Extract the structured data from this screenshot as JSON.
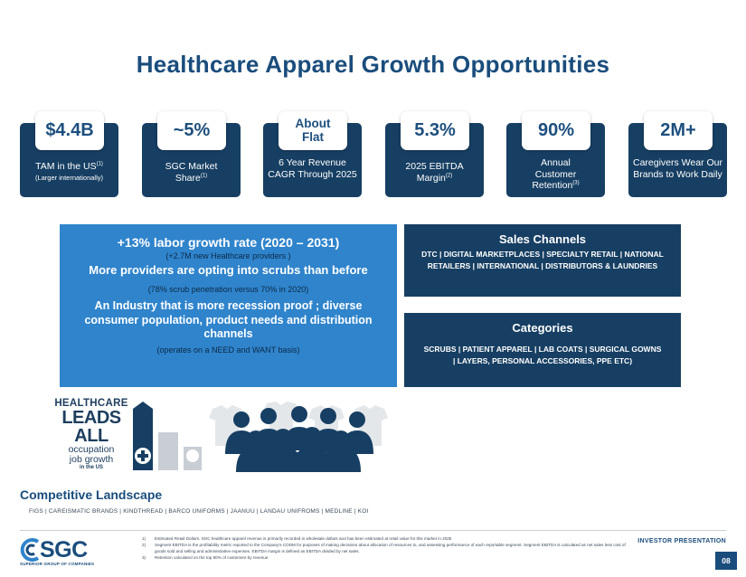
{
  "title": "Healthcare Apparel Growth Opportunities",
  "stats": [
    {
      "value": "$4.4B",
      "label": "TAM in the US",
      "sup": "(1)",
      "note": "(Larger internationally)"
    },
    {
      "value": "~5%",
      "label": "SGC Market Share",
      "sup": "(1)"
    },
    {
      "value": "About Flat",
      "label": "6 Year Revenue CAGR Through 2025"
    },
    {
      "value": "5.3%",
      "label": "2025 EBITDA Margin",
      "sup": "(2)"
    },
    {
      "value": "90%",
      "label": "Annual Customer Retention",
      "sup": "(3)"
    },
    {
      "value": "2M+",
      "label": "Caregivers Wear Our Brands to Work Daily"
    }
  ],
  "growth": {
    "headline": "+13% labor growth rate (2020 – 2031)",
    "headline_sub": "(+2.7M new Healthcare providers )",
    "scrubs": "More providers are opting into scrubs than before",
    "scrubs_sub": "(78% scrub penetration versus 70% in 2020)",
    "industry": "An Industry that is more recession proof ; diverse consumer population, product needs and distribution channels",
    "industry_sub": "(operates on a NEED and WANT basis)"
  },
  "sales_channels": {
    "title": "Sales Channels",
    "body": "DTC | DIGITAL MARKETPLACES | SPECIALTY RETAIL | NATIONAL RETAILERS | INTERNATIONAL | DISTRIBUTORS & LAUNDRIES"
  },
  "categories": {
    "title": "Categories",
    "body": "SCRUBS | PATIENT APPAREL | LAB COATS | SURGICAL GOWNS | LAYERS, PERSONAL ACCESSORIES, PPE ETC)"
  },
  "infographic": {
    "line1": "HEALTHCARE",
    "line2": "LEADS ALL",
    "line3": "occupation",
    "line4": "job growth",
    "line5": "in the US"
  },
  "competitive": {
    "title": "Competitive Landscape",
    "list": "FIGS | CAREISMATIC BRANDS | KINDTHREAD | BARCO UNIFORMS | JAANUU | LANDAU UNIFROMS | MEDLINE | KOI"
  },
  "footnotes": [
    {
      "num": "1)",
      "text": "Estimated Retail Dollars. SGC healthcare apparel revenue is primarily recorded in wholesale dollars and has been estimated at retail value for this market in 2025"
    },
    {
      "num": "2)",
      "text": "Segment EBITDA is the profitability metric reported to the Company's CODM for purposes of making decisions about allocation of resources to, and assessing performance of each reportable segment. Segment EBITDA is calculated as net sales less cost of goods sold and selling and administrative expenses. EBITDA margin is defined as EBITDA divided by net sales."
    },
    {
      "num": "3)",
      "text": "Retention calculated on the top 80% of customers by revenue"
    }
  ],
  "logo": {
    "word": "SGC",
    "tagline": "SUPERIOR GROUP OF COMPANIES"
  },
  "footer_label": "INVESTOR PRESENTATION",
  "page_number": "08",
  "colors": {
    "navy": "#173f63",
    "blue": "#2f84cc",
    "title": "#1a4d7c"
  }
}
